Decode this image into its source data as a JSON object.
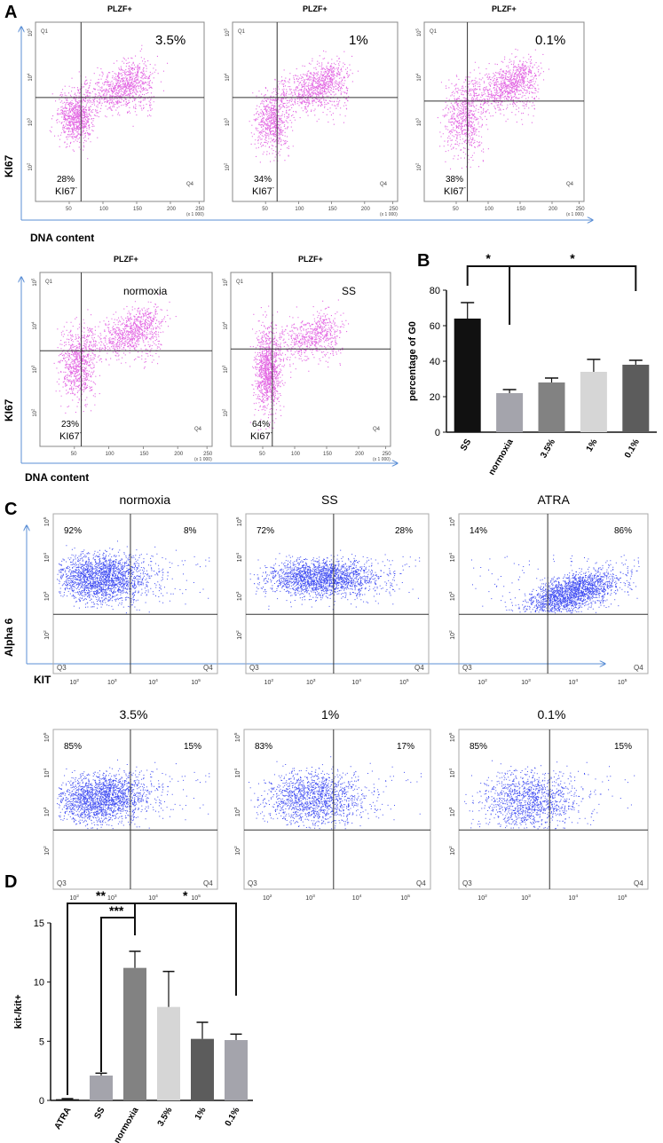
{
  "panel_labels": {
    "a": "A",
    "b": "B",
    "c": "C",
    "d": "D"
  },
  "panel_a": {
    "y_axis_label": "KI67",
    "x_axis_label": "DNA content",
    "row1": [
      {
        "header": "PLZF+",
        "condition": "3.5%",
        "pct": "28%",
        "marker": "KI67",
        "sup": "-",
        "q1": "Q1",
        "q4": "Q4",
        "xticks": [
          "50",
          "100",
          "150",
          "200",
          "250"
        ],
        "scale": "(x 1 000)",
        "yticks": [
          "10^5",
          "10^4",
          "10^3",
          "10^2"
        ]
      },
      {
        "header": "PLZF+",
        "condition": "1%",
        "pct": "34%",
        "marker": "KI67",
        "sup": "-",
        "q1": "Q1",
        "q4": "Q4",
        "xticks": [
          "50",
          "100",
          "150",
          "200",
          "250"
        ],
        "scale": "(x 1 000)",
        "yticks": [
          "10^5",
          "10^4",
          "10^3",
          "10^2"
        ]
      },
      {
        "header": "PLZF+",
        "condition": "0.1%",
        "pct": "38%",
        "marker": "KI67",
        "sup": "-",
        "q1": "Q1",
        "q4": "Q4",
        "xticks": [
          "50",
          "100",
          "150",
          "200",
          "250"
        ],
        "scale": "(x 1 000)",
        "yticks": [
          "10^5",
          "10^4",
          "10^3",
          "10^2"
        ]
      }
    ],
    "row2": [
      {
        "header": "PLZF+",
        "condition": "normoxia",
        "pct": "23%",
        "marker": "KI67",
        "sup": "-",
        "q1": "Q1",
        "q4": "Q4",
        "xticks": [
          "50",
          "100",
          "150",
          "200",
          "250"
        ],
        "scale": "(x 1 000)",
        "yticks": [
          "10^5",
          "10^4",
          "10^3",
          "10^2"
        ]
      },
      {
        "header": "PLZF+",
        "condition": "SS",
        "pct": "64%",
        "marker": "KI67",
        "sup": "-",
        "q1": "Q1",
        "q4": "Q4",
        "xticks": [
          "50",
          "100",
          "150",
          "200",
          "250"
        ],
        "scale": "(x 1 000)",
        "yticks": [
          "10^5",
          "10^4",
          "10^3",
          "10^2"
        ]
      }
    ],
    "colors": {
      "dots": "#d936d9",
      "axis_arrow": "#5b8fd6"
    }
  },
  "panel_c": {
    "y_axis_label": "Alpha 6",
    "x_axis_label": "KIT",
    "plots": [
      {
        "title": "normoxia",
        "q1_pct": "92%",
        "q2_pct": "8%",
        "q3": "Q3",
        "q4": "Q4"
      },
      {
        "title": "SS",
        "q1_pct": "72%",
        "q2_pct": "28%",
        "q3": "Q3",
        "q4": "Q4"
      },
      {
        "title": "ATRA",
        "q1_pct": "14%",
        "q2_pct": "86%",
        "q3": "Q3",
        "q4": "Q4"
      },
      {
        "title": "3.5%",
        "q1_pct": "85%",
        "q2_pct": "15%",
        "q3": "Q3",
        "q4": "Q4"
      },
      {
        "title": "1%",
        "q1_pct": "83%",
        "q2_pct": "17%",
        "q3": "Q3",
        "q4": "Q4"
      },
      {
        "title": "0.1%",
        "q1_pct": "85%",
        "q2_pct": "15%",
        "q3": "Q3",
        "q4": "Q4"
      }
    ],
    "xticks": [
      "10^2",
      "10^3",
      "10^4",
      "10^5"
    ],
    "yticks": [
      "10^5",
      "10^4",
      "10^3",
      "10^2"
    ],
    "colors": {
      "dots": "#1f2ef0",
      "axis_arrow": "#5b8fd6"
    }
  },
  "chart_data": [
    {
      "type": "bar",
      "id": "B",
      "categories": [
        "SS",
        "normoxia",
        "3.5%",
        "1%",
        "0.1%"
      ],
      "values": [
        64,
        22,
        28,
        34,
        38
      ],
      "errors": [
        9,
        2,
        2.5,
        7,
        2.5
      ],
      "colors": [
        "#111111",
        "#a4a4ac",
        "#828282",
        "#d6d6d6",
        "#5c5c5c"
      ],
      "title": "",
      "xlabel": "",
      "ylabel": "percentage of G0",
      "ylim": [
        0,
        80
      ],
      "yticks": [
        "0",
        "20",
        "40",
        "60",
        "80"
      ],
      "significance": [
        {
          "from": "SS",
          "to": "normoxia",
          "label": "*"
        },
        {
          "from": "normoxia",
          "to": "0.1%",
          "label": "*"
        }
      ]
    },
    {
      "type": "bar",
      "id": "D",
      "categories": [
        "ATRA",
        "SS",
        "normoxia",
        "3.5%",
        "1%",
        "0.1%"
      ],
      "values": [
        0.1,
        2.1,
        11.2,
        7.9,
        5.2,
        5.1
      ],
      "errors": [
        0.05,
        0.2,
        1.4,
        3.0,
        1.4,
        0.5
      ],
      "colors": [
        "#111111",
        "#a4a4ac",
        "#828282",
        "#d6d6d6",
        "#5c5c5c",
        "#a4a4ac"
      ],
      "title": "",
      "xlabel": "",
      "ylabel": "kit-/kit+",
      "ylim": [
        0,
        15
      ],
      "yticks": [
        "0",
        "5",
        "10",
        "15"
      ],
      "significance": [
        {
          "from": "ATRA",
          "to": "normoxia",
          "label": "**"
        },
        {
          "from": "SS",
          "to": "normoxia",
          "label": "***"
        },
        {
          "from": "normoxia",
          "to": "0.1%",
          "label": "*"
        }
      ]
    }
  ]
}
